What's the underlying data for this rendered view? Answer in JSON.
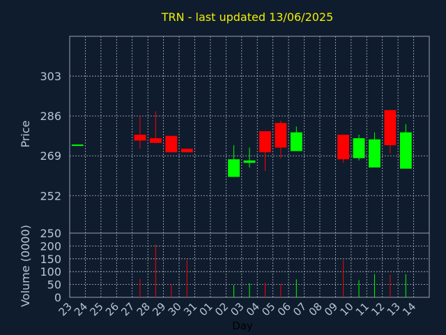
{
  "chart_data": [
    {
      "type": "candlestick",
      "title": "TRN - last updated 13/06/2025",
      "ylabel": "Price",
      "ylim": [
        236,
        320
      ],
      "yticks": [
        "303",
        "286",
        "269",
        "252"
      ],
      "ytick_values": [
        303,
        286,
        269,
        252
      ],
      "colors": {
        "up": "#00ff00",
        "down": "#ff0000"
      },
      "points": [
        {
          "day": "23",
          "open": 273.5,
          "close": 273.5,
          "high": 273.5,
          "low": 273.5
        },
        {
          "day": "27",
          "open": 278.0,
          "close": 275.5,
          "high": 286.0,
          "low": 272.0
        },
        {
          "day": "28",
          "open": 276.5,
          "close": 274.5,
          "high": 288.0,
          "low": 274.5
        },
        {
          "day": "29",
          "open": 277.5,
          "close": 270.5,
          "high": 277.5,
          "low": 270.5
        },
        {
          "day": "30",
          "open": 272.0,
          "close": 270.5,
          "high": 272.0,
          "low": 270.5
        },
        {
          "day": "02",
          "open": 260.0,
          "close": 267.5,
          "high": 273.5,
          "low": 260.0
        },
        {
          "day": "03",
          "open": 266.0,
          "close": 267.0,
          "high": 272.5,
          "low": 264.0
        },
        {
          "day": "04",
          "open": 279.5,
          "close": 270.5,
          "high": 279.5,
          "low": 262.5
        },
        {
          "day": "05",
          "open": 283.0,
          "close": 272.5,
          "high": 284.0,
          "low": 268.0
        },
        {
          "day": "06",
          "open": 271.0,
          "close": 279.0,
          "high": 281.5,
          "low": 271.0
        },
        {
          "day": "09",
          "open": 278.0,
          "close": 267.5,
          "high": 278.0,
          "low": 266.0
        },
        {
          "day": "10",
          "open": 268.0,
          "close": 276.5,
          "high": 278.0,
          "low": 267.0
        },
        {
          "day": "11",
          "open": 264.0,
          "close": 276.0,
          "high": 279.0,
          "low": 264.0
        },
        {
          "day": "12",
          "open": 288.5,
          "close": 273.5,
          "high": 288.5,
          "low": 270.0
        },
        {
          "day": "13",
          "open": 263.5,
          "close": 279.0,
          "high": 282.5,
          "low": 263.5
        }
      ]
    },
    {
      "type": "bar",
      "ylabel": "Volume (0000)",
      "ylim": [
        0,
        250
      ],
      "yticks": [
        "250",
        "200",
        "150",
        "100",
        "50",
        "0"
      ],
      "ytick_values": [
        250,
        200,
        150,
        100,
        50,
        0
      ],
      "xlabel": "Day",
      "categories": [
        "23",
        "24",
        "25",
        "26",
        "27",
        "28",
        "29",
        "30",
        "31",
        "01",
        "02",
        "03",
        "04",
        "05",
        "06",
        "07",
        "08",
        "09",
        "10",
        "11",
        "12",
        "13",
        "14"
      ],
      "values": [
        {
          "day": "27",
          "volume": 72,
          "color": "#ff0000"
        },
        {
          "day": "28",
          "volume": 205,
          "color": "#ff0000"
        },
        {
          "day": "29",
          "volume": 52,
          "color": "#ff0000"
        },
        {
          "day": "30",
          "volume": 145,
          "color": "#ff0000"
        },
        {
          "day": "02",
          "volume": 48,
          "color": "#00ff00"
        },
        {
          "day": "03",
          "volume": 55,
          "color": "#00ff00"
        },
        {
          "day": "04",
          "volume": 57,
          "color": "#ff0000"
        },
        {
          "day": "05",
          "volume": 53,
          "color": "#ff0000"
        },
        {
          "day": "06",
          "volume": 70,
          "color": "#00ff00"
        },
        {
          "day": "09",
          "volume": 145,
          "color": "#ff0000"
        },
        {
          "day": "10",
          "volume": 67,
          "color": "#00ff00"
        },
        {
          "day": "11",
          "volume": 90,
          "color": "#00ff00"
        },
        {
          "day": "12",
          "volume": 88,
          "color": "#ff0000"
        },
        {
          "day": "13",
          "volume": 90,
          "color": "#00ff00"
        }
      ]
    }
  ]
}
